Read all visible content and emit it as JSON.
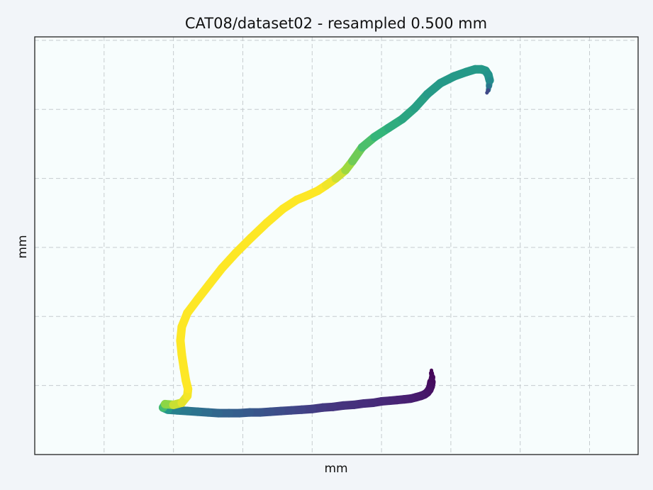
{
  "chart_data": {
    "type": "scatter",
    "title": "CAT08/dataset02 - resampled 0.500 mm",
    "xlabel": "mm",
    "ylabel": "mm",
    "xlim": [
      0,
      8.7
    ],
    "ylim": [
      0,
      6.05
    ],
    "grid": true,
    "tick_labels_visible": false,
    "colormap": "viridis",
    "series": [
      {
        "x": [
          5.72,
          5.72,
          5.73,
          5.72,
          5.71,
          5.69,
          5.66,
          5.62,
          5.57,
          5.5,
          5.42,
          5.33,
          5.23,
          5.12,
          5.0,
          4.88,
          4.75,
          4.6,
          4.45,
          4.3,
          4.15,
          4.0,
          3.85,
          3.7,
          3.55,
          3.4,
          3.25,
          3.1,
          2.95,
          2.8,
          2.65,
          2.5,
          2.35,
          2.2,
          2.05,
          1.92,
          1.85,
          1.88,
          2.0,
          2.12,
          2.2,
          2.21,
          2.18,
          2.15,
          2.12,
          2.1,
          2.12,
          2.2,
          2.35,
          2.52,
          2.7,
          2.9,
          3.12,
          3.35,
          3.58,
          3.78,
          3.95,
          4.08,
          4.2,
          4.34,
          4.48,
          4.58,
          4.72,
          4.9,
          5.1,
          5.3,
          5.48,
          5.66,
          5.85,
          6.05,
          6.22,
          6.35,
          6.44,
          6.5,
          6.54,
          6.56,
          6.55,
          6.54,
          6.52
        ],
        "y": [
          1.22,
          1.18,
          1.12,
          1.05,
          0.99,
          0.94,
          0.9,
          0.87,
          0.85,
          0.83,
          0.81,
          0.8,
          0.79,
          0.78,
          0.77,
          0.75,
          0.74,
          0.72,
          0.71,
          0.69,
          0.68,
          0.66,
          0.65,
          0.64,
          0.63,
          0.62,
          0.61,
          0.61,
          0.6,
          0.6,
          0.6,
          0.61,
          0.62,
          0.63,
          0.64,
          0.65,
          0.68,
          0.73,
          0.72,
          0.75,
          0.85,
          0.95,
          1.07,
          1.25,
          1.45,
          1.65,
          1.85,
          2.05,
          2.25,
          2.47,
          2.7,
          2.92,
          3.14,
          3.36,
          3.56,
          3.69,
          3.76,
          3.82,
          3.9,
          4.0,
          4.12,
          4.25,
          4.45,
          4.6,
          4.73,
          4.86,
          5.02,
          5.22,
          5.38,
          5.48,
          5.54,
          5.58,
          5.58,
          5.56,
          5.5,
          5.42,
          5.34,
          5.28,
          5.24
        ],
        "c": [
          0.0,
          0.01,
          0.02,
          0.03,
          0.04,
          0.05,
          0.06,
          0.07,
          0.08,
          0.09,
          0.1,
          0.11,
          0.12,
          0.13,
          0.14,
          0.15,
          0.16,
          0.17,
          0.18,
          0.19,
          0.2,
          0.22,
          0.24,
          0.26,
          0.28,
          0.3,
          0.32,
          0.34,
          0.36,
          0.38,
          0.4,
          0.43,
          0.46,
          0.49,
          0.52,
          0.56,
          0.72,
          0.82,
          0.92,
          0.96,
          0.98,
          1.0,
          1.0,
          1.0,
          1.0,
          1.0,
          1.0,
          1.0,
          1.0,
          1.0,
          1.0,
          1.0,
          1.0,
          1.0,
          1.0,
          1.0,
          1.0,
          1.0,
          1.0,
          0.97,
          0.92,
          0.86,
          0.8,
          0.76,
          0.73,
          0.7,
          0.68,
          0.66,
          0.65,
          0.65,
          0.65,
          0.65,
          0.65,
          0.65,
          0.64,
          0.62,
          0.56,
          0.4,
          0.15
        ]
      }
    ]
  }
}
